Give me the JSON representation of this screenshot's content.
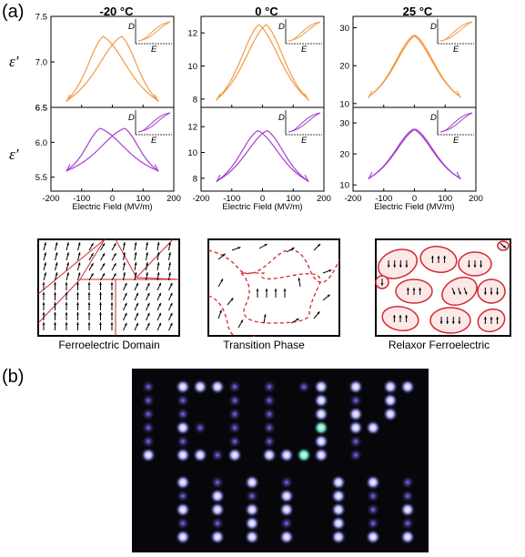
{
  "labels": {
    "a": "(a)",
    "b": "(b)"
  },
  "temperatures": [
    "-20 °C",
    "0 °C",
    "25 °C"
  ],
  "y_symbol": "ε′",
  "inset_labels": {
    "d": "D",
    "e": "E"
  },
  "colors": {
    "top": "#f39a44",
    "bottom": "#a63fcf",
    "boundary": "#d2282f"
  },
  "chart_data": [
    {
      "type": "line",
      "temperature": "-20 °C",
      "row": "top",
      "xlabel": "Electric Field (MV/m)",
      "xticks": [],
      "xlim": [
        -200,
        200
      ],
      "ylim": [
        6.5,
        7.5
      ],
      "yticks": [
        "6.5",
        "7.0",
        "7.5"
      ],
      "yticks_num": [
        6.5,
        7.0,
        7.5
      ],
      "peak_positions": [
        -30,
        30
      ],
      "peak_value": 7.28,
      "end_values": [
        6.56,
        6.56
      ],
      "field_range": [
        -150,
        150
      ],
      "kind": "butterfly"
    },
    {
      "type": "line",
      "temperature": "0 °C",
      "row": "top",
      "xlabel": "Electric Field (MV/m)",
      "xticks": [],
      "xlim": [
        -200,
        200
      ],
      "ylim": [
        7.5,
        13
      ],
      "yticks": [
        "8",
        "10",
        "12"
      ],
      "yticks_num": [
        8,
        10,
        12
      ],
      "peak_positions": [
        -12,
        12
      ],
      "peak_value": 12.5,
      "end_values": [
        7.9,
        7.9
      ],
      "field_range": [
        -150,
        150
      ],
      "kind": "butterfly"
    },
    {
      "type": "line",
      "temperature": "25 °C",
      "row": "top",
      "xlabel": "Electric Field (MV/m)",
      "xticks": [],
      "xlim": [
        -200,
        200
      ],
      "ylim": [
        9,
        33
      ],
      "yticks": [
        "10",
        "20",
        "30"
      ],
      "yticks_num": [
        10,
        20,
        30
      ],
      "peak_positions": [
        -3,
        3
      ],
      "peak_value": 28,
      "end_values": [
        11.5,
        11.5
      ],
      "field_range": [
        -150,
        150
      ],
      "kind": "butterfly"
    },
    {
      "type": "line",
      "temperature": "-20 °C",
      "row": "bottom",
      "xlabel": "Electric Field (MV/m)",
      "xticks": [
        "-200",
        "-100",
        "0",
        "100",
        "200"
      ],
      "xticks_num": [
        -200,
        -100,
        0,
        100,
        200
      ],
      "xlim": [
        -200,
        200
      ],
      "ylim": [
        5.3,
        6.5
      ],
      "yticks": [
        "5.5",
        "6.0",
        "6.5"
      ],
      "yticks_num": [
        5.5,
        6.0,
        6.5
      ],
      "peak_positions": [
        -40,
        40
      ],
      "peak_value": 6.2,
      "end_values": [
        5.58,
        5.58
      ],
      "field_range": [
        -150,
        150
      ],
      "kind": "butterfly"
    },
    {
      "type": "line",
      "temperature": "0 °C",
      "row": "bottom",
      "xlabel": "Electric Field (MV/m)",
      "xticks": [
        "-200",
        "-100",
        "0",
        "100",
        "200"
      ],
      "xticks_num": [
        -200,
        -100,
        0,
        100,
        200
      ],
      "xlim": [
        -200,
        200
      ],
      "ylim": [
        7,
        13.5
      ],
      "yticks": [
        "8",
        "10",
        "12"
      ],
      "yticks_num": [
        8,
        10,
        12
      ],
      "peak_positions": [
        -15,
        15
      ],
      "peak_value": 11.7,
      "end_values": [
        7.7,
        7.7
      ],
      "field_range": [
        -150,
        150
      ],
      "kind": "butterfly"
    },
    {
      "type": "line",
      "temperature": "25 °C",
      "row": "bottom",
      "xlabel": "Electric Field (MV/m)",
      "xticks": [
        "-200",
        "-100",
        "0",
        "100",
        "200"
      ],
      "xticks_num": [
        -200,
        -100,
        0,
        100,
        200
      ],
      "xlim": [
        -200,
        200
      ],
      "ylim": [
        8,
        35
      ],
      "yticks": [
        "10",
        "20",
        "30"
      ],
      "yticks_num": [
        10,
        20,
        30
      ],
      "peak_positions": [
        -3,
        3
      ],
      "peak_value": 28,
      "end_values": [
        11.8,
        11.8
      ],
      "field_range": [
        -150,
        150
      ],
      "kind": "butterfly"
    }
  ],
  "schematics": [
    {
      "caption": "Ferroelectric Domain"
    },
    {
      "caption": "Transition Phase"
    },
    {
      "caption": "Relaxor Ferroelectric"
    }
  ],
  "led_display": {
    "rows": 10,
    "description_words": [
      "pixel-LED pattern"
    ]
  }
}
